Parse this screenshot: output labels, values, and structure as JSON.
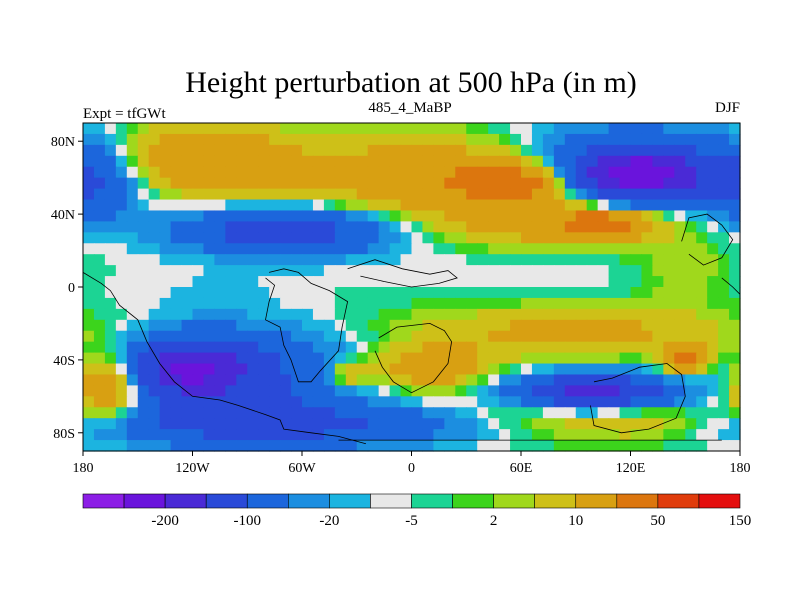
{
  "chart_data": {
    "type": "heatmap",
    "title": "Height perturbation at 500 hPa (in m)",
    "left_string": "Expt = tfGWt",
    "center_string": "485_4_MaBP",
    "right_string": "DJF",
    "x_ticks": [
      "180",
      "120W",
      "60W",
      "0",
      "60E",
      "120E",
      "180"
    ],
    "x_tick_values": [
      -180,
      -120,
      -60,
      0,
      60,
      120,
      180
    ],
    "y_ticks": [
      "80N",
      "40N",
      "0",
      "40S",
      "80S"
    ],
    "y_tick_values": [
      80,
      40,
      0,
      -40,
      -80
    ],
    "xlim": [
      -180,
      180
    ],
    "ylim": [
      -90,
      90
    ],
    "colorbar_labels": [
      "-200",
      "-100",
      "-20",
      "-5",
      "2",
      "10",
      "50",
      "150"
    ],
    "colorbar_colors": [
      "#8c1ee6",
      "#6a14dc",
      "#4a2ad6",
      "#2a4ad8",
      "#1c66dc",
      "#1c8ee0",
      "#1cb4e0",
      "#e8e8e8",
      "#1cd494",
      "#3cd41c",
      "#a0d81c",
      "#cec018",
      "#d8a012",
      "#dc760e",
      "#e03c0c",
      "#e40e0e"
    ],
    "field_regions": [
      {
        "lon": 60,
        "lat": 58,
        "value": 65,
        "rlon": 35,
        "rlat": 12
      },
      {
        "lon": 20,
        "lat": 60,
        "value": 40,
        "rlon": 90,
        "rlat": 22
      },
      {
        "lon": -115,
        "lat": 70,
        "value": 40,
        "rlon": 45,
        "rlat": 18
      },
      {
        "lon": 105,
        "lat": 35,
        "value": 60,
        "rlon": 22,
        "rlat": 7
      },
      {
        "lon": 80,
        "lat": 35,
        "value": 30,
        "rlon": 60,
        "rlat": 14
      },
      {
        "lon": 125,
        "lat": 62,
        "value": -150,
        "rlon": 35,
        "rlat": 12
      },
      {
        "lon": 115,
        "lat": 65,
        "value": -60,
        "rlon": 65,
        "rlat": 22
      },
      {
        "lon": -175,
        "lat": 55,
        "value": -40,
        "rlon": 22,
        "rlat": 20
      },
      {
        "lon": -70,
        "lat": 30,
        "value": -60,
        "rlon": 45,
        "rlat": 10
      },
      {
        "lon": -70,
        "lat": 32,
        "value": -25,
        "rlon": 70,
        "rlat": 16
      },
      {
        "lon": 60,
        "lat": 8,
        "value": -5,
        "rlon": 70,
        "rlat": 14
      },
      {
        "lon": -110,
        "lat": 0,
        "value": -4,
        "rlon": 70,
        "rlat": 12
      },
      {
        "lon": -120,
        "lat": -45,
        "value": -120,
        "rlon": 28,
        "rlat": 14
      },
      {
        "lon": -100,
        "lat": -50,
        "value": -60,
        "rlon": 65,
        "rlat": 26
      },
      {
        "lon": 100,
        "lat": -58,
        "value": -110,
        "rlon": 35,
        "rlat": 8
      },
      {
        "lon": 90,
        "lat": -58,
        "value": -30,
        "rlon": 75,
        "rlat": 13
      },
      {
        "lon": -165,
        "lat": -55,
        "value": 60,
        "rlon": 20,
        "rlat": 18
      },
      {
        "lon": 10,
        "lat": -45,
        "value": 40,
        "rlon": 35,
        "rlat": 12
      },
      {
        "lon": 90,
        "lat": -25,
        "value": 25,
        "rlon": 90,
        "rlat": 14
      },
      {
        "lon": 80,
        "lat": -70,
        "value": 35,
        "rlon": 110,
        "rlat": 14
      },
      {
        "lon": -35,
        "lat": -48,
        "value": 30,
        "rlon": 12,
        "rlat": 8
      },
      {
        "lon": 150,
        "lat": -40,
        "value": 60,
        "rlon": 12,
        "rlat": 8
      },
      {
        "lon": -30,
        "lat": -15,
        "value": 1,
        "rlon": 55,
        "rlat": 18
      },
      {
        "lon": -60,
        "lat": -75,
        "value": -60,
        "rlon": 120,
        "rlat": 12
      },
      {
        "lon": 150,
        "lat": 10,
        "value": 10,
        "rlon": 25,
        "rlat": 20
      }
    ]
  }
}
